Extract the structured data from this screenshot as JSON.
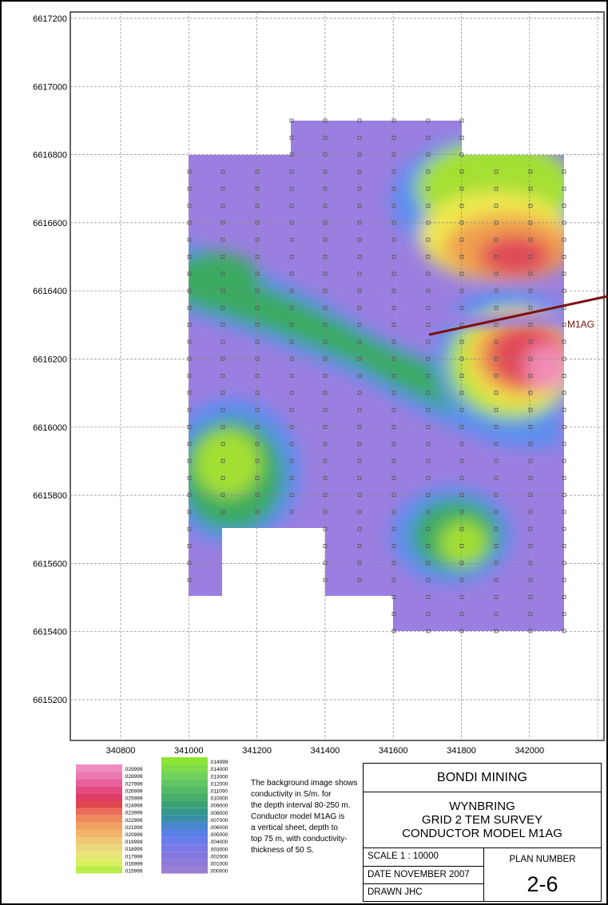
{
  "map": {
    "y_ticks": [
      "6617200",
      "6617000",
      "6616800",
      "6616600",
      "6616400",
      "6616200",
      "6616000",
      "6615800",
      "6615600",
      "6615400",
      "6615200"
    ],
    "x_ticks": [
      "340800",
      "341000",
      "341200",
      "341400",
      "341600",
      "341800",
      "342000"
    ],
    "conductor_label": "M1AG",
    "colors": {
      "purple": "#9b7fe0",
      "blue": "#5a8ef0",
      "green": "#3aaa60",
      "lime": "#a4e030",
      "yellow": "#f0e850",
      "orange": "#f0a050",
      "red": "#e04858",
      "pink": "#f08cb8",
      "conductor": "#7a1010"
    }
  },
  "legend": {
    "warm": [
      ".029999",
      ".028999",
      ".027999",
      ".026999",
      ".025999",
      ".024999",
      ".023999",
      ".022999",
      ".021999",
      ".020999",
      ".019999",
      ".018999",
      ".017999",
      ".016999",
      ".015999"
    ],
    "cool": [
      ".014999",
      ".014000",
      ".013000",
      ".012000",
      ".011000",
      ".010000",
      ".009000",
      ".008000",
      ".007000",
      ".006000",
      ".005000",
      ".004000",
      ".003000",
      ".002000",
      ".001000",
      ".000000"
    ],
    "warm_colors": [
      "#f08cc0",
      "#ec78b0",
      "#e86098",
      "#e44a80",
      "#e03c68",
      "#e04450",
      "#ec6c5a",
      "#f08a5c",
      "#f2a060",
      "#f2b468",
      "#f0c874",
      "#ecd87c",
      "#e8e476",
      "#dcee62",
      "#b8ee4a"
    ],
    "cool_colors": [
      "#8ee432",
      "#7edc48",
      "#70d25a",
      "#62c662",
      "#54ba66",
      "#48ae6a",
      "#3ca274",
      "#34988a",
      "#3a8ea8",
      "#4a86d0",
      "#5a80e8",
      "#6a7ce8",
      "#7a7ae6",
      "#8478e0",
      "#8e7ad8",
      "#9a7fd6"
    ]
  },
  "note": {
    "lines": [
      "The background image shows",
      "conductivity in S/m. for",
      "the depth interval 80-250 m.",
      "Conductor model M1AG is",
      "a vertical sheet, depth to",
      "top 75 m, with conductivity-",
      "thickness of 50 S."
    ]
  },
  "title_block": {
    "company": "BONDI MINING",
    "title_lines": [
      "WYNBRING",
      "GRID 2 TEM SURVEY",
      "CONDUCTOR MODEL M1AG"
    ],
    "scale": "SCALE  1 :  10000",
    "date": "DATE NOVEMBER 2007",
    "drawn": "DRAWN JHC",
    "plan_label": "PLAN NUMBER",
    "plan_number": "2-6"
  }
}
